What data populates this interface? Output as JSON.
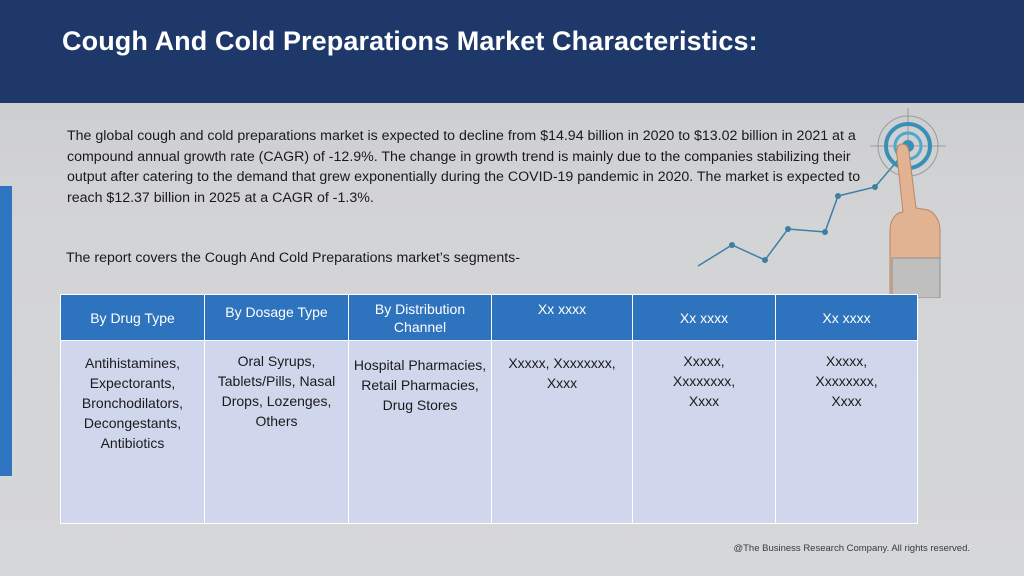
{
  "header": {
    "title": "Cough And Cold Preparations Market Characteristics:"
  },
  "intro": {
    "text": "The global cough and cold preparations market is expected to decline from $14.94 billion in 2020 to $13.02 billion in 2021 at a compound annual growth rate (CAGR) of -12.9%. The change in growth trend is mainly due to the companies stabilizing their output after catering to the demand that grew exponentially during the COVID-19 pandemic in 2020. The market is expected to reach $12.37 billion in 2025 at a CAGR of -1.3%."
  },
  "segments_label": "The report covers the Cough And Cold Preparations market’s segments-",
  "table": {
    "headers": [
      "By Drug Type",
      "By Dosage Type",
      "By Distribution Channel",
      "Xx xxxx",
      "Xx xxxx",
      "Xx xxxx"
    ],
    "cells": [
      "Antihistamines, Expectorants, Bronchodilators, Decongestants, Antibiotics",
      "Oral Syrups, Tablets/Pills, Nasal Drops, Lozenges, Others",
      "Hospital Pharmacies, Retail Pharmacies, Drug Stores",
      "Xxxxx, Xxxxxxxx, Xxxx",
      "Xxxxx, Xxxxxxxx, Xxxx",
      "Xxxxx, Xxxxxxxx, Xxxx"
    ]
  },
  "illustration": {
    "icon": "target-growth-hand-icon",
    "accent": "#3a8fb5"
  },
  "footer": "@The Business Research Company. All rights reserved.",
  "colors": {
    "header_bg": "#1e3869",
    "table_header_bg": "#2e73bd",
    "table_cell_bg": "#d0d7ed",
    "accent_bar": "#2e74c0"
  }
}
